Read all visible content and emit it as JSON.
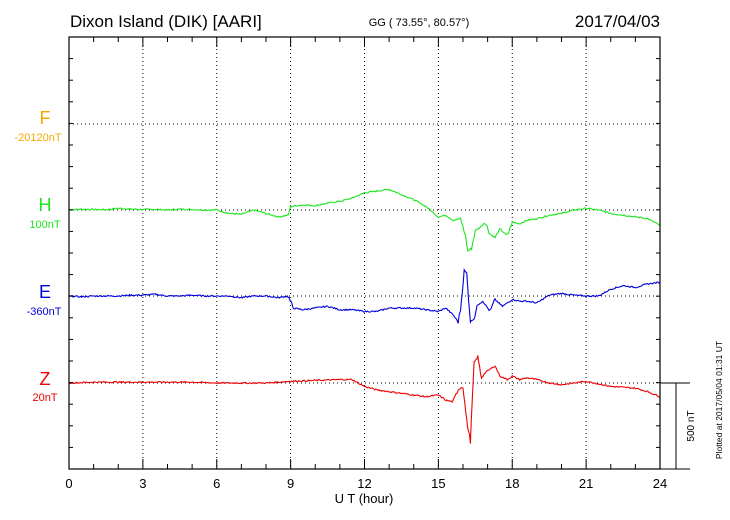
{
  "header": {
    "station": "Dixon Island (DIK)  [AARI]",
    "coords": "GG ( 73.55°,  80.57°)",
    "date": "2017/04/03"
  },
  "footer": {
    "plotted": "Plotted at 2017/05/04 01:31  UT"
  },
  "colors": {
    "F": "#f5a800",
    "H": "#1ee61e",
    "E": "#0000dd",
    "Z": "#ee0000",
    "axis": "#000000",
    "grid": "#000000"
  },
  "chart_data": {
    "type": "line",
    "title": "",
    "xlabel": "U T (hour)",
    "ylabel": "",
    "xlim": [
      0,
      24
    ],
    "x_ticks": [
      0,
      3,
      6,
      9,
      12,
      15,
      18,
      21,
      24
    ],
    "x_tick_labels": [
      "0",
      "3",
      "6",
      "9",
      "12",
      "15",
      "18",
      "21",
      "24"
    ],
    "grid": true,
    "scale_bar": {
      "label": "500 nT",
      "nT": 500
    },
    "series": [
      {
        "name": "F",
        "baseline": "-20120nT",
        "color_key": "F",
        "x": [],
        "y": []
      },
      {
        "name": "H",
        "baseline": "100nT",
        "color_key": "H",
        "x": [
          0,
          0.5,
          1,
          1.5,
          2,
          2.5,
          3,
          3.5,
          4,
          4.5,
          5,
          5.5,
          6,
          6.5,
          7,
          7.5,
          8,
          8.5,
          8.9,
          9,
          9.5,
          10,
          10.5,
          11,
          11.5,
          12,
          12.5,
          13,
          13.5,
          14,
          14.5,
          15,
          15.3,
          15.6,
          15.9,
          16.1,
          16.2,
          16.35,
          16.5,
          16.7,
          16.9,
          17.1,
          17.3,
          17.5,
          17.8,
          18,
          18.3,
          18.6,
          19,
          19.5,
          20,
          20.5,
          21,
          21.5,
          22,
          22.5,
          23,
          23.5,
          24
        ],
        "y": [
          0,
          5,
          3,
          2,
          10,
          5,
          3,
          4,
          0,
          5,
          3,
          0,
          0,
          -20,
          -25,
          0,
          -20,
          -40,
          -30,
          20,
          30,
          25,
          40,
          50,
          70,
          100,
          110,
          120,
          90,
          60,
          20,
          -40,
          -30,
          -60,
          -50,
          -150,
          -240,
          -220,
          -120,
          -100,
          -70,
          -140,
          -160,
          -110,
          -150,
          -70,
          -80,
          -60,
          -50,
          -30,
          -20,
          0,
          10,
          0,
          -20,
          -30,
          -40,
          -50,
          -90
        ]
      },
      {
        "name": "E",
        "baseline": "-360nT",
        "color_key": "E",
        "x": [
          0,
          0.5,
          1,
          1.5,
          2,
          2.5,
          3,
          3.5,
          4,
          4.5,
          5,
          5.5,
          6,
          6.5,
          7,
          7.5,
          8,
          8.5,
          8.9,
          9.1,
          9.5,
          10,
          10.5,
          11,
          11.5,
          12,
          12.5,
          13,
          13.5,
          14,
          14.5,
          15,
          15.3,
          15.6,
          15.8,
          15.9,
          16.05,
          16.15,
          16.3,
          16.45,
          16.6,
          16.8,
          17.1,
          17.3,
          17.6,
          18,
          18.3,
          18.6,
          19,
          19.5,
          20,
          20.5,
          21,
          21.5,
          22,
          22.5,
          23,
          23.5,
          24
        ],
        "y": [
          0,
          -5,
          0,
          0,
          0,
          5,
          5,
          10,
          0,
          0,
          5,
          0,
          0,
          0,
          -10,
          0,
          0,
          -10,
          0,
          -70,
          -80,
          -70,
          -60,
          -80,
          -80,
          -90,
          -90,
          -70,
          -70,
          -70,
          -80,
          -90,
          -70,
          -110,
          -150,
          -80,
          150,
          130,
          -150,
          -130,
          -50,
          -30,
          -90,
          -20,
          -60,
          -20,
          -30,
          -30,
          -40,
          5,
          15,
          5,
          0,
          0,
          40,
          60,
          50,
          70,
          80
        ]
      },
      {
        "name": "Z",
        "baseline": "20nT",
        "color_key": "Z",
        "x": [
          0,
          1,
          2,
          3,
          4,
          5,
          6,
          7,
          8,
          9,
          10,
          11,
          11.5,
          12,
          12.5,
          13,
          13.5,
          14,
          14.5,
          15,
          15.3,
          15.6,
          15.8,
          16,
          16.15,
          16.3,
          16.45,
          16.6,
          16.75,
          16.9,
          17.1,
          17.3,
          17.5,
          17.8,
          18,
          18.3,
          18.6,
          19,
          19.5,
          20,
          21,
          22,
          23,
          23.5,
          24
        ],
        "y": [
          0,
          5,
          5,
          5,
          5,
          5,
          0,
          0,
          0,
          10,
          15,
          20,
          20,
          -20,
          -40,
          -50,
          -60,
          -70,
          -80,
          -70,
          -100,
          -110,
          -40,
          -20,
          -220,
          -340,
          120,
          150,
          30,
          60,
          80,
          100,
          40,
          20,
          40,
          20,
          30,
          20,
          0,
          -10,
          10,
          -20,
          -30,
          -50,
          -80
        ]
      }
    ]
  }
}
